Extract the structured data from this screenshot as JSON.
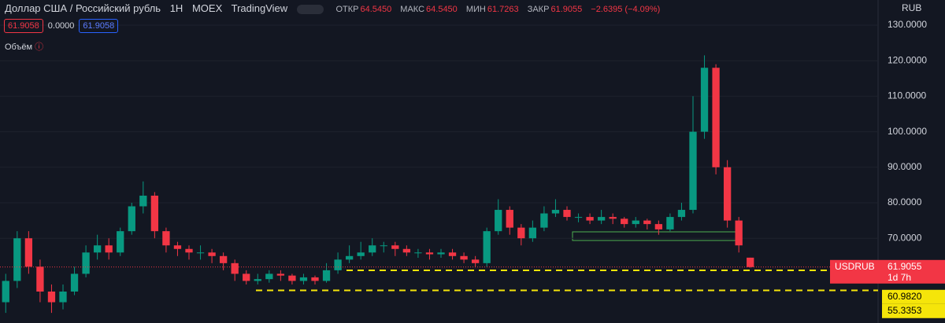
{
  "header": {
    "symbol": "Доллар США / Российский рубль",
    "interval": "1Н",
    "exchange": "MOEX",
    "source": "TradingView",
    "open_label": "ОТКР",
    "open": "64.5450",
    "high_label": "МАКС",
    "high": "64.5450",
    "low_label": "МИН",
    "low": "61.7263",
    "close_label": "ЗАКР",
    "close": "61.9055",
    "change": "−2.6395 (−4.09%)",
    "bid": "61.9058",
    "spread": "0.0000",
    "ask": "61.9058",
    "volume_label": "Объём",
    "currency": "RUB"
  },
  "chart_data": {
    "type": "candlestick",
    "open": [
      52,
      58,
      70,
      62,
      55,
      52,
      55,
      60,
      66,
      68,
      66,
      72,
      79,
      82,
      72,
      68,
      67,
      66,
      66,
      65,
      63,
      60,
      58,
      58.5,
      60,
      59.5,
      58,
      59,
      58,
      61,
      64,
      65,
      66,
      68,
      68,
      67,
      66,
      66,
      65.5,
      66,
      65,
      64,
      63,
      72,
      78,
      73,
      70,
      73,
      77,
      78,
      76,
      76,
      75,
      76,
      75.5,
      74,
      75,
      74,
      72.5,
      76,
      78,
      100,
      118,
      90,
      75,
      64.545
    ],
    "high": [
      60,
      72,
      72,
      64,
      57,
      57,
      62,
      68,
      71,
      70,
      73,
      80,
      86,
      83,
      73,
      69,
      68,
      68,
      67,
      66,
      64,
      61,
      60,
      61,
      61,
      60,
      60,
      59.5,
      63,
      66,
      68,
      69,
      70,
      69,
      69,
      68,
      67,
      67,
      67,
      67,
      66,
      65,
      73,
      81,
      79,
      74,
      75,
      79,
      81,
      79,
      77,
      77,
      78,
      77,
      76,
      76,
      75.5,
      75,
      77,
      80,
      110,
      121.5,
      119,
      92,
      76,
      64.545
    ],
    "low": [
      49,
      56,
      60,
      52,
      49,
      50,
      54,
      59,
      64,
      64,
      65,
      71,
      77,
      70,
      66,
      65,
      64,
      64,
      63,
      61,
      58,
      57,
      57,
      57.5,
      58,
      57,
      57,
      57,
      57.5,
      60,
      63,
      64,
      65,
      66,
      65,
      65,
      64.5,
      64,
      64.5,
      64,
      63,
      62,
      62,
      71,
      71,
      68,
      69,
      72,
      76,
      75,
      74.5,
      74,
      74,
      74,
      73,
      73,
      72.5,
      71,
      72,
      75,
      77,
      98,
      88,
      73,
      66,
      61.7263
    ],
    "close": [
      58,
      70,
      62,
      55,
      52,
      55,
      60,
      66,
      68,
      66,
      72,
      79,
      82,
      72,
      68,
      67,
      66,
      66,
      65,
      63,
      60,
      58,
      58.5,
      60,
      59.5,
      58,
      59,
      58,
      61,
      64,
      65,
      66,
      68,
      68,
      67,
      66,
      66,
      65.5,
      66,
      65,
      64,
      63,
      72,
      78,
      73,
      70,
      73,
      77,
      78,
      76,
      76,
      75,
      76,
      75.5,
      74,
      75,
      74,
      72.5,
      76,
      78,
      100,
      118,
      90,
      75,
      68,
      61.9055
    ],
    "up_color": "#089981",
    "down_color": "#f23645",
    "ylim": [
      46.15,
      137.08
    ],
    "yticks": [
      {
        "value": 70,
        "label": "70.0000"
      },
      {
        "value": 80,
        "label": "80.0000"
      },
      {
        "value": 90,
        "label": "90.0000"
      },
      {
        "value": 100,
        "label": "100.0000"
      },
      {
        "value": 110,
        "label": "110.0000"
      },
      {
        "value": 120,
        "label": "120.0000"
      },
      {
        "value": 130,
        "label": "130.0000"
      }
    ],
    "last_price": {
      "name": "USDRUB",
      "value": 61.9055,
      "label": "61.9055",
      "countdown": "1d 7h"
    },
    "levels": [
      {
        "value": 60.982,
        "label": "60.9820"
      },
      {
        "value": 55.3353,
        "label": "55.3353"
      }
    ],
    "level_color": "#f5e50a",
    "grid": true
  }
}
